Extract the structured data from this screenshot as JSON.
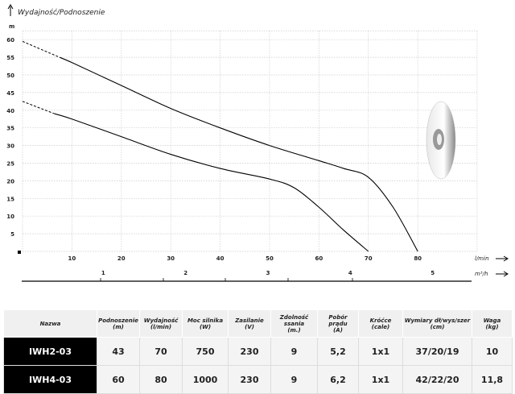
{
  "chart_data": {
    "type": "line",
    "title": "Wydajność/Podnoszenie",
    "ylabel": "m",
    "xlabel": "l/min",
    "x2label": "m³/h",
    "xlim": [
      0,
      92
    ],
    "ylim": [
      0,
      62.5
    ],
    "xticks": [
      10,
      20,
      30,
      40,
      50,
      60,
      70,
      80
    ],
    "yticks": [
      5,
      10,
      15,
      20,
      25,
      30,
      35,
      40,
      45,
      50,
      55,
      60
    ],
    "x2ticks": [
      1,
      2,
      3,
      4,
      5
    ],
    "grid": true,
    "series": [
      {
        "dashed": [
          [
            0,
            59.5
          ],
          [
            7.5,
            55
          ]
        ],
        "values": [
          [
            7.5,
            55
          ],
          [
            10,
            53.5
          ],
          [
            20,
            47
          ],
          [
            30,
            40.5
          ],
          [
            40,
            35
          ],
          [
            50,
            30
          ],
          [
            60,
            25.7
          ],
          [
            65,
            23.5
          ],
          [
            70,
            21
          ],
          [
            75,
            12.5
          ],
          [
            80,
            0
          ]
        ]
      },
      {
        "dashed": [
          [
            0,
            42.5
          ],
          [
            6.5,
            39
          ]
        ],
        "values": [
          [
            6.5,
            39
          ],
          [
            10,
            37.5
          ],
          [
            20,
            32.5
          ],
          [
            30,
            27.5
          ],
          [
            40,
            23.5
          ],
          [
            50,
            20.5
          ],
          [
            55,
            18
          ],
          [
            60,
            12.5
          ],
          [
            65,
            6
          ],
          [
            70,
            0
          ]
        ]
      }
    ]
  },
  "table": {
    "headers": [
      [
        "Nazwa",
        ""
      ],
      [
        "Podnoszenie",
        "(m)"
      ],
      [
        "Wydajność",
        "(l/min)"
      ],
      [
        "Moc silnika",
        "(W)"
      ],
      [
        "Zasilanie",
        "(V)"
      ],
      [
        "Zdolność ssania",
        "(m.)"
      ],
      [
        "Pobór prądu",
        "(A)"
      ],
      [
        "Króćce",
        "(cale)"
      ],
      [
        "Wymiary dł/wys/szer",
        "(cm)"
      ],
      [
        "Waga",
        "(kg)"
      ]
    ],
    "rows": [
      [
        "IWH2-03",
        "43",
        "70",
        "750",
        "230",
        "9",
        "5,2",
        "1x1",
        "37/20/19",
        "10"
      ],
      [
        "IWH4-03",
        "60",
        "80",
        "1000",
        "230",
        "9",
        "6,2",
        "1x1",
        "42/22/20",
        "11,8"
      ]
    ]
  }
}
